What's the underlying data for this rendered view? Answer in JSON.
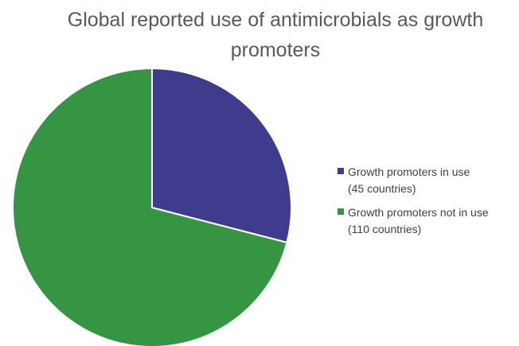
{
  "chart_data": {
    "type": "pie",
    "title_lines": [
      "Global reported use of antimicrobials as growth",
      "promoters"
    ],
    "slices": [
      {
        "label_lines": [
          "Growth promoters in use",
          "(45 countries)"
        ],
        "value": 45,
        "color": "#3f3b8d"
      },
      {
        "label_lines": [
          "Growth promoters not in use",
          "(110 countries)"
        ],
        "value": 110,
        "color": "#359543"
      }
    ],
    "legend_position": "right"
  }
}
